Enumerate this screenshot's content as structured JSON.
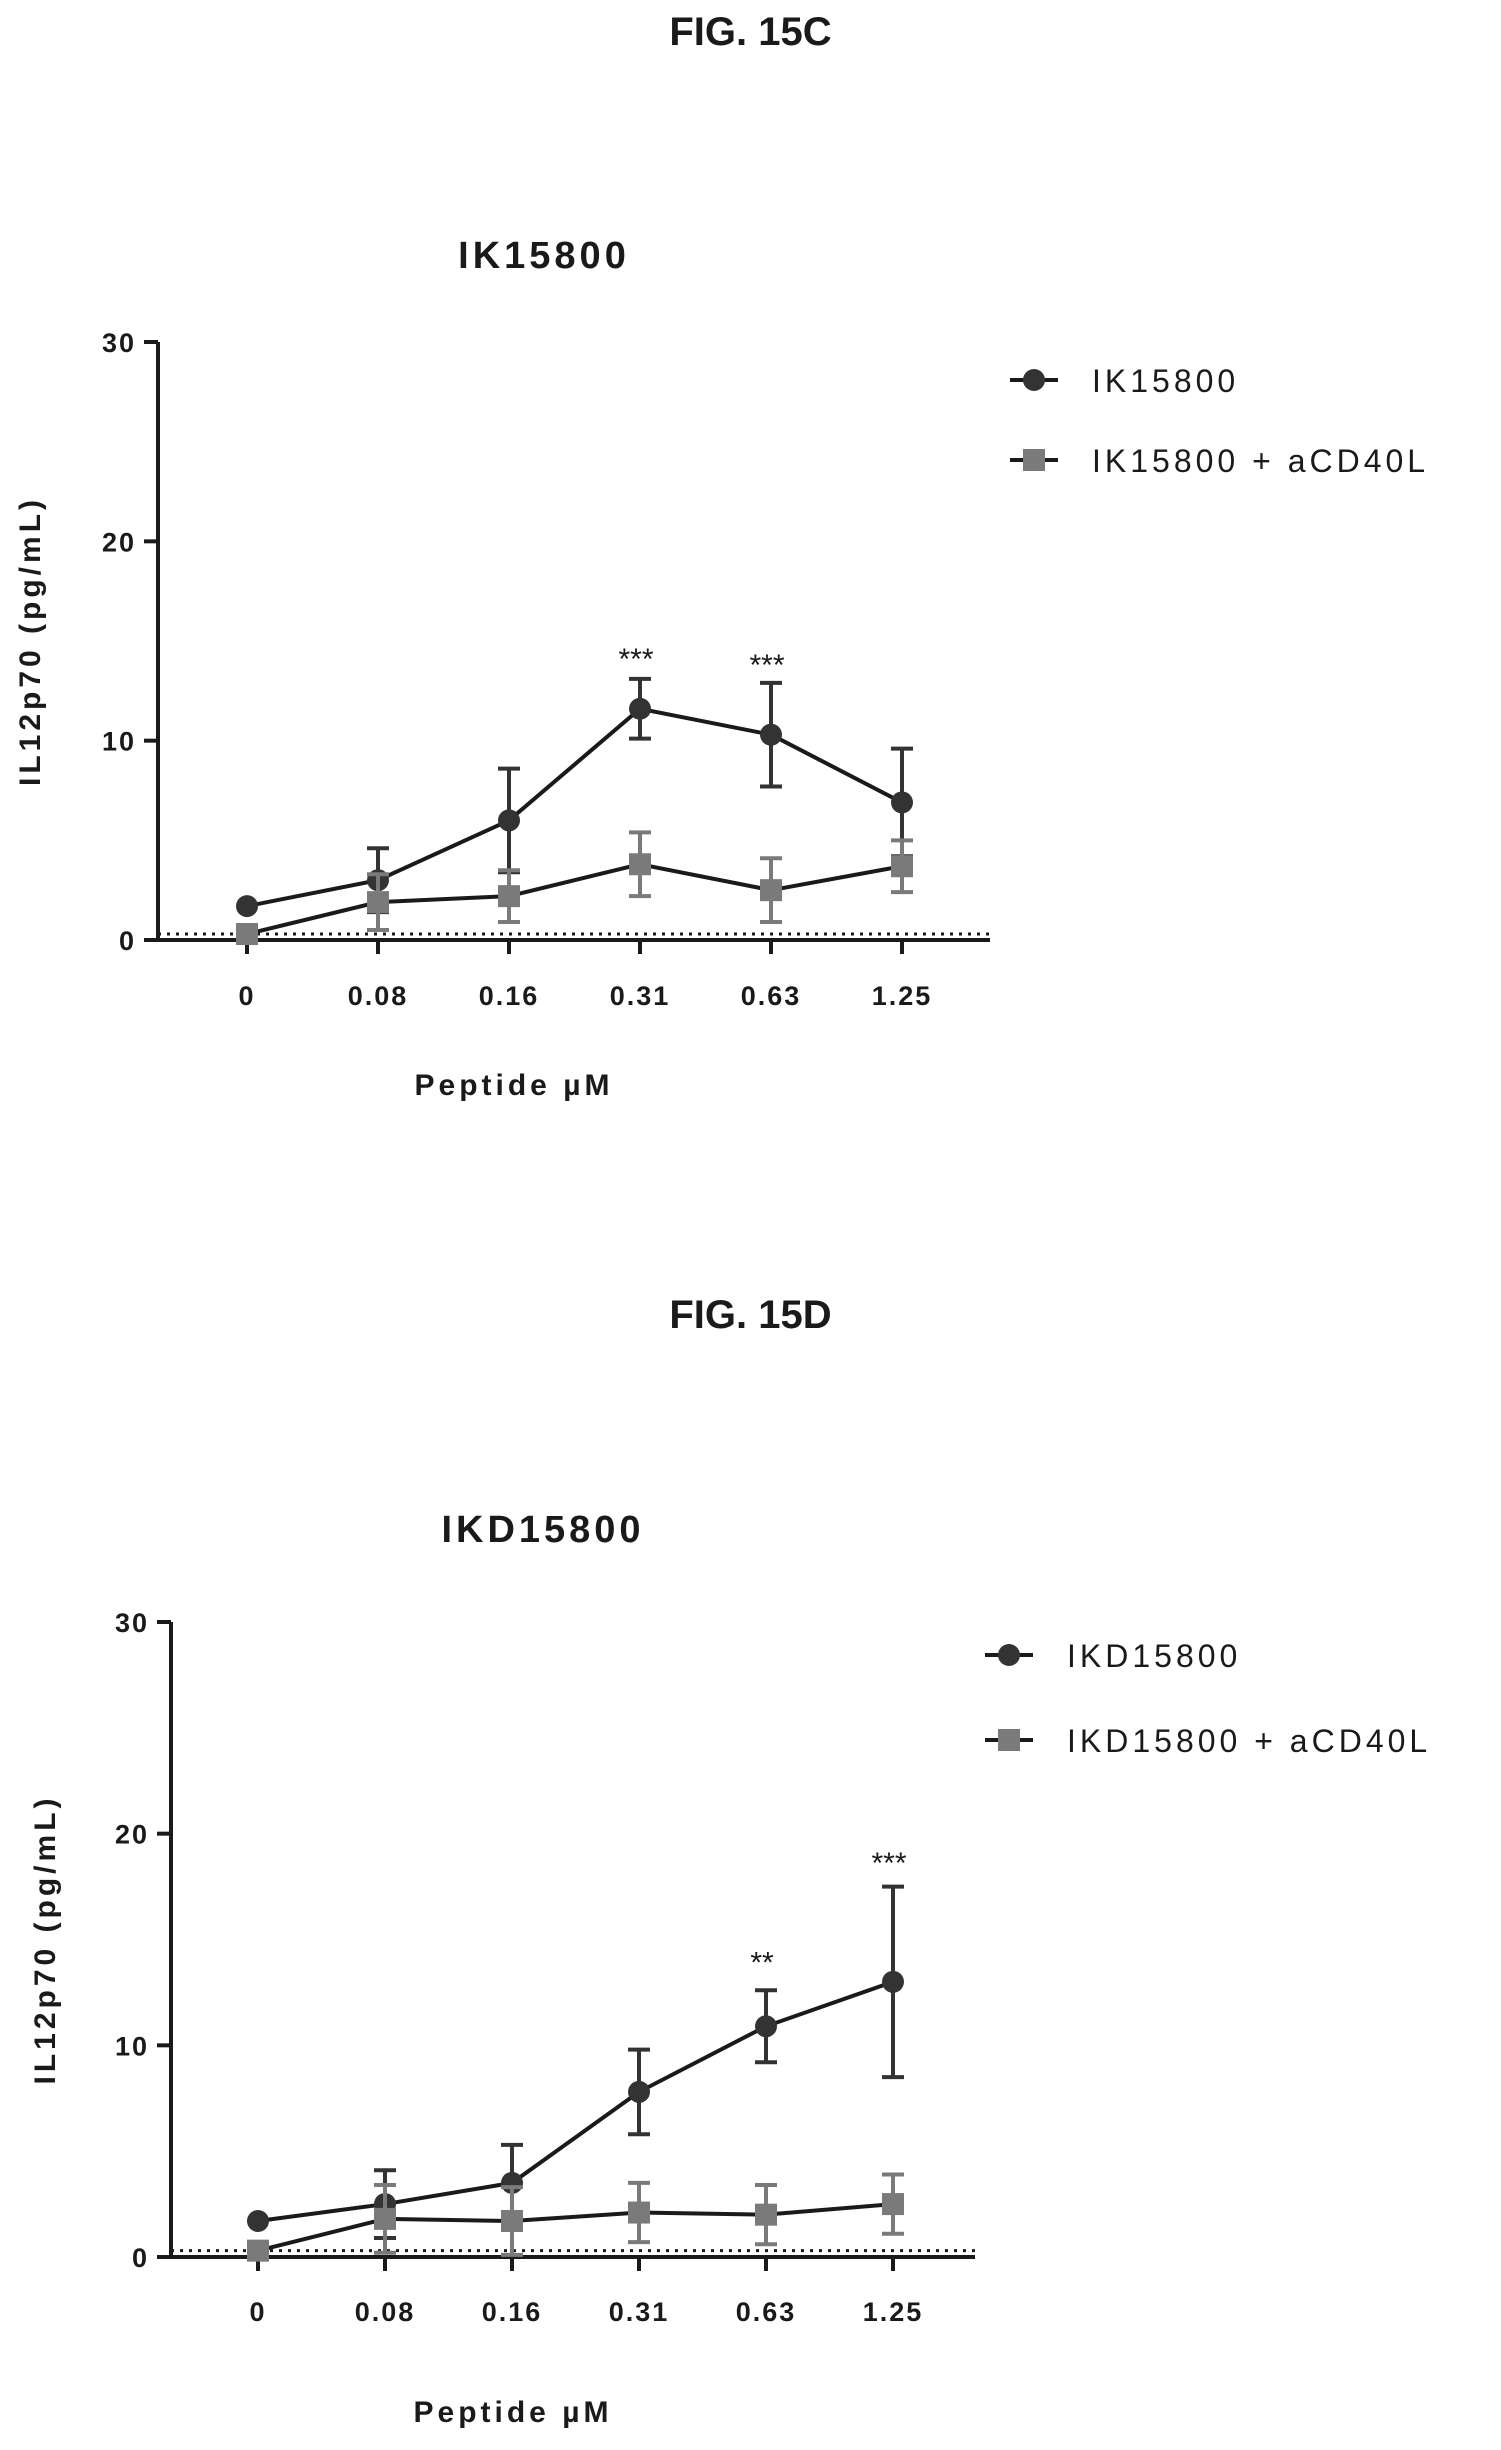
{
  "figures": [
    {
      "label": "FIG. 15C"
    },
    {
      "label": "FIG. 15D"
    }
  ],
  "colors": {
    "series1": "#333333",
    "series2": "#7a7a7a",
    "axis": "#1a1a1a"
  },
  "chart_data": [
    {
      "type": "line",
      "title": "IK15800",
      "xlabel": "Peptide µM",
      "ylabel": "IL12p70 (pg/mL)",
      "categories": [
        "0",
        "0.08",
        "0.16",
        "0.31",
        "0.63",
        "1.25"
      ],
      "ylim": [
        0,
        30
      ],
      "yticks": [
        "0",
        "10",
        "20",
        "30"
      ],
      "baseline": 0.3,
      "legend_position": "right",
      "series": [
        {
          "name": "IK15800",
          "marker": "circle",
          "values": [
            1.7,
            3.0,
            6.0,
            11.6,
            10.3,
            6.9
          ],
          "errors": [
            0,
            1.6,
            2.6,
            1.5,
            2.6,
            2.7
          ]
        },
        {
          "name": "IK15800 + aCD40L",
          "marker": "square",
          "values": [
            0.3,
            1.9,
            2.2,
            3.8,
            2.5,
            3.7
          ],
          "errors": [
            0,
            1.4,
            1.3,
            1.6,
            1.6,
            1.3
          ]
        }
      ],
      "annotations": [
        {
          "category": "0.31",
          "text": "***",
          "y": 14.5
        },
        {
          "category": "0.63",
          "text": "***",
          "y": 14.2
        }
      ]
    },
    {
      "type": "line",
      "title": "IKD15800",
      "xlabel": "Peptide µM",
      "ylabel": "IL12p70 (pg/mL)",
      "categories": [
        "0",
        "0.08",
        "0.16",
        "0.31",
        "0.63",
        "1.25"
      ],
      "ylim": [
        0,
        30
      ],
      "yticks": [
        "0",
        "10",
        "20",
        "30"
      ],
      "baseline": 0.3,
      "legend_position": "right",
      "series": [
        {
          "name": "IKD15800",
          "marker": "circle",
          "values": [
            1.7,
            2.5,
            3.5,
            7.8,
            10.9,
            13.0
          ],
          "errors": [
            0,
            1.6,
            1.8,
            2.0,
            1.7,
            4.5
          ]
        },
        {
          "name": "IKD15800 + aCD40L",
          "marker": "square",
          "values": [
            0.3,
            1.8,
            1.7,
            2.1,
            2.0,
            2.5
          ],
          "errors": [
            0,
            1.6,
            1.6,
            1.4,
            1.4,
            1.4
          ]
        }
      ],
      "annotations": [
        {
          "category": "0.63",
          "text": "**",
          "y": 14.3
        },
        {
          "category": "1.25",
          "text": "***",
          "y": 19.0
        }
      ]
    }
  ]
}
